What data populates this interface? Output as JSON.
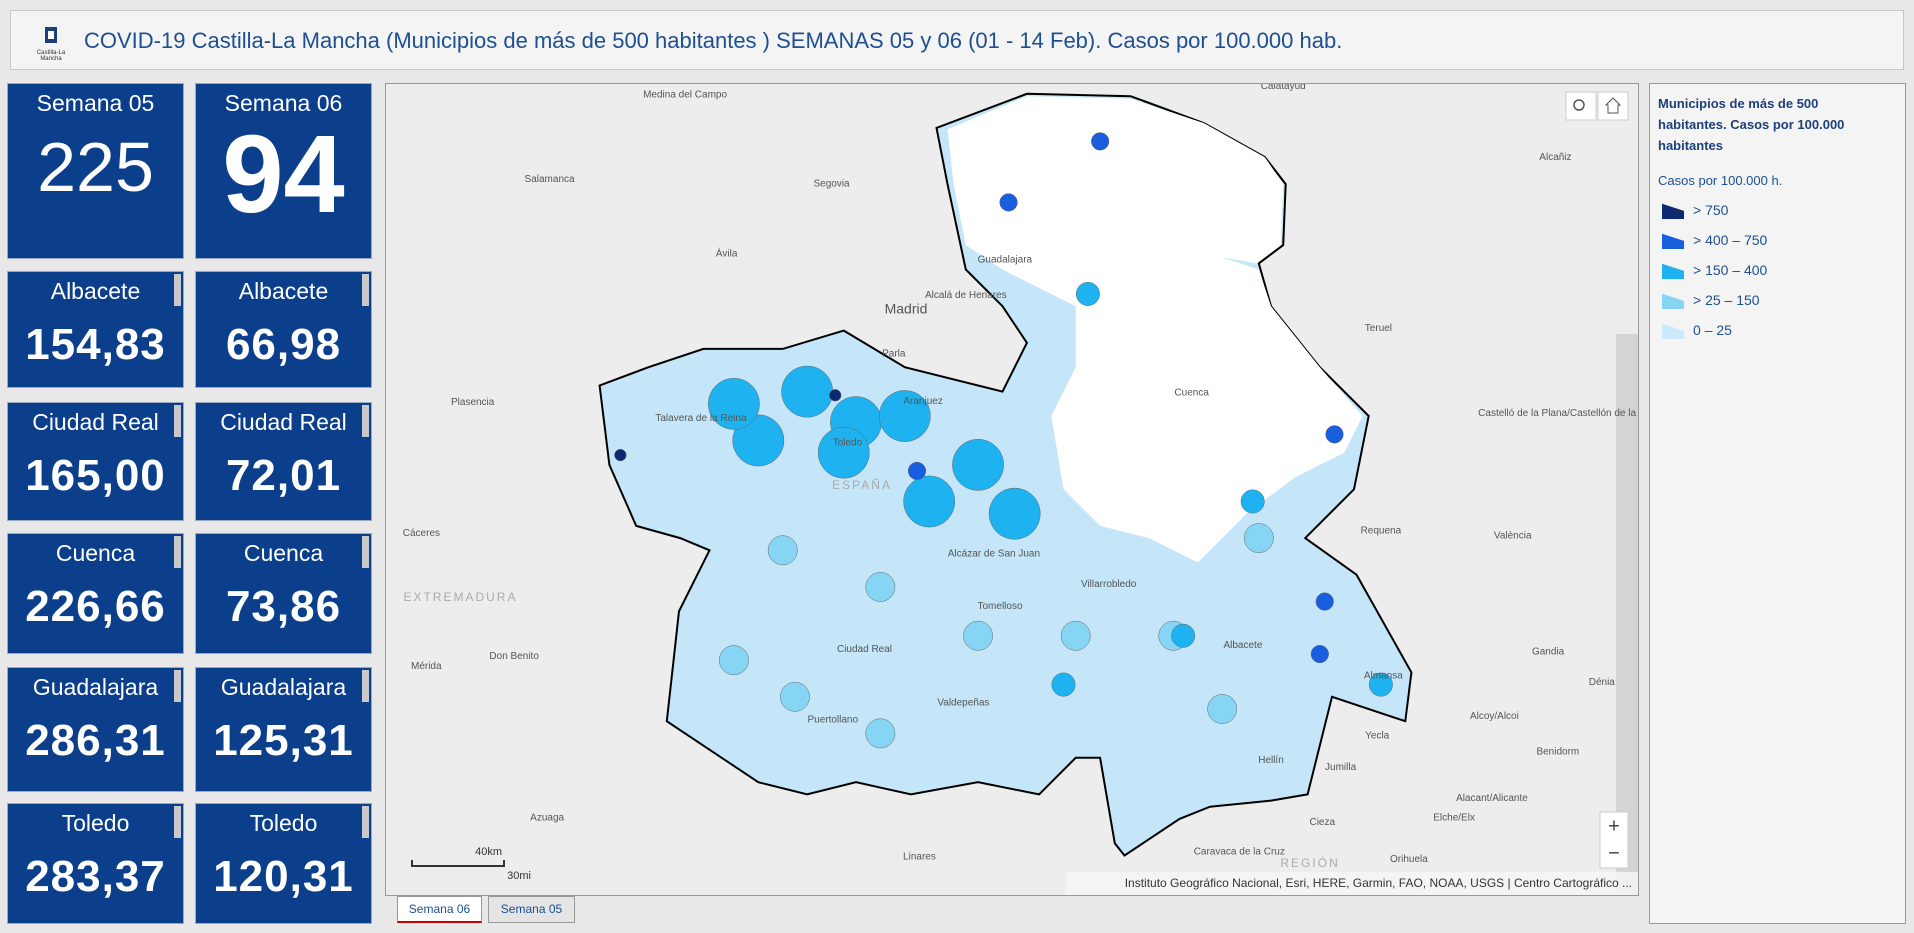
{
  "header": {
    "title": "COVID-19 Castilla-La Mancha (Municipios de más de 500 habitantes ) SEMANAS 05 y 06 (01 - 14 Feb). Casos por 100.000 hab.",
    "logo_text": "Castilla-La Mancha"
  },
  "indicators": [
    {
      "label": "Semana 05",
      "value": "225"
    },
    {
      "label": "Semana 06",
      "value": "94"
    }
  ],
  "provinces": [
    {
      "name": "Albacete",
      "semana_05": "154,83",
      "semana_06": "66,98"
    },
    {
      "name": "Ciudad Real",
      "semana_05": "165,00",
      "semana_06": "72,01"
    },
    {
      "name": "Cuenca",
      "semana_05": "226,66",
      "semana_06": "73,86"
    },
    {
      "name": "Guadalajara",
      "semana_05": "286,31",
      "semana_06": "125,31"
    },
    {
      "name": "Toledo",
      "semana_05": "283,37",
      "semana_06": "120,31"
    }
  ],
  "map": {
    "places": [
      "Calatayud",
      "Medina del Campo",
      "Salamanca",
      "Segovia",
      "Ávila",
      "Madrid",
      "Alcalá de Henares",
      "Parla",
      "Plasencia",
      "Talavera de la Reina",
      "Aranjuez",
      "Toledo",
      "ESPAÑA",
      "Guadalajara",
      "Cuenca",
      "Teruel",
      "Alcañiz",
      "Castelló de la Plana/Castellón de la Plana",
      "València",
      "Requena",
      "Cáceres",
      "EXTREMADURA",
      "Mérida",
      "Don Benito",
      "Alcázar de San Juan",
      "Tomelloso",
      "Villarrobledo",
      "Albacete",
      "Almansa",
      "Ciudad Real",
      "Valdepeñas",
      "Puertollano",
      "Hellín",
      "Yecla",
      "Jumilla",
      "Gandia",
      "Dénia",
      "Alcoy/Alcoi",
      "Benidorm",
      "Alacant/Alicante",
      "Elche/Elx",
      "Cieza",
      "Orihuela",
      "Caravaca de la Cruz",
      "Linares",
      "Azuaga",
      "REGIÓN"
    ],
    "scale": [
      "40km",
      "30mi"
    ],
    "zoom": [
      "+",
      "−"
    ],
    "attribution": "Instituto Geográfico Nacional, Esri, HERE, Garmin, FAO, NOAA, USGS | Centro Cartográfico ..."
  },
  "legend": {
    "title": "Municipios de más de 500 habitantes. Casos por 100.000 habitantes",
    "subtitle": "Casos por 100.000 h.",
    "items": [
      {
        "label": "> 750",
        "color": "#0b2a6f"
      },
      {
        "label": "> 400 – 750",
        "color": "#1a5ee0"
      },
      {
        "label": "> 150 – 400",
        "color": "#1eb3f0"
      },
      {
        "label": "> 25 – 150",
        "color": "#86d5f5"
      },
      {
        "label": "0 – 25",
        "color": "#cbe9fa"
      }
    ]
  },
  "tabs": [
    "Semana 06",
    "Semana 05"
  ]
}
